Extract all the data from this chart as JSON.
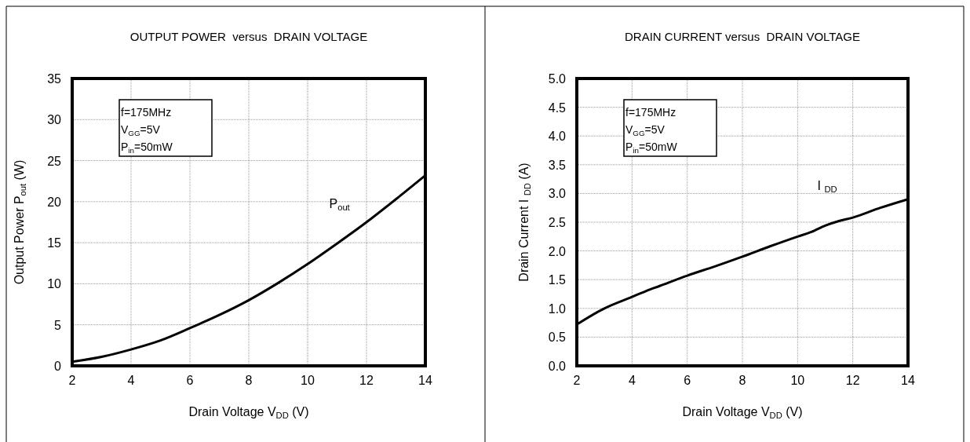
{
  "chart_data": [
    {
      "type": "line",
      "title": "OUTPUT POWER  versus  DRAIN VOLTAGE",
      "xlabel": "Drain Voltage V$_{DD}$ (V)",
      "ylabel": "Output Power P$_{out}$ (W)",
      "annotations": [
        "f=175MHz",
        "V$_{GG}$=5V",
        "P$_{in}$=50mW"
      ],
      "x": [
        2,
        3,
        4,
        5,
        6,
        7,
        8,
        9,
        10,
        11,
        12,
        13,
        14
      ],
      "series": [
        {
          "name": "P$_{out}$",
          "color": "#000000",
          "values": [
            0.5,
            1.1,
            2.0,
            3.1,
            4.6,
            6.2,
            8.0,
            10.1,
            12.4,
            14.9,
            17.5,
            20.3,
            23.2
          ]
        }
      ],
      "xlim": [
        2,
        14
      ],
      "xticks": [
        2,
        4,
        6,
        8,
        10,
        12,
        14
      ],
      "ylim": [
        0,
        35
      ],
      "yticks": [
        0,
        5,
        10,
        15,
        20,
        25,
        30,
        35
      ],
      "grid": true,
      "marker": "none",
      "line_style": "solid"
    },
    {
      "type": "line",
      "title": "DRAIN CURRENT versus  DRAIN VOLTAGE",
      "xlabel": "Drain Voltage V$_{DD}$ (V)",
      "ylabel": "Drain Current I $_{DD}$ (A)",
      "annotations": [
        "f=175MHz",
        "V$_{GG}$=5V",
        "P$_{in}$=50mW"
      ],
      "x": [
        2,
        3,
        4,
        4.5,
        5,
        6,
        7,
        8,
        9,
        10,
        10.5,
        11,
        11.5,
        12,
        13,
        14
      ],
      "series": [
        {
          "name": "I $_{DD}$",
          "color": "#000000",
          "values": [
            0.72,
            1.0,
            1.2,
            1.3,
            1.39,
            1.57,
            1.73,
            1.9,
            2.08,
            2.25,
            2.33,
            2.44,
            2.52,
            2.58,
            2.75,
            2.9
          ]
        }
      ],
      "xlim": [
        2,
        14
      ],
      "xticks": [
        2,
        4,
        6,
        8,
        10,
        12,
        14
      ],
      "ylim": [
        0,
        5
      ],
      "yticks": [
        {
          "value": 0,
          "label": "0.0"
        },
        {
          "value": 0.5,
          "label": "0.5"
        },
        {
          "value": 1,
          "label": "1.0"
        },
        {
          "value": 1.5,
          "label": "1.5"
        },
        {
          "value": 2,
          "label": "2.0"
        },
        {
          "value": 2.5,
          "label": "2.5"
        },
        {
          "value": 3,
          "label": "3.0"
        },
        {
          "value": 3.5,
          "label": "3.5"
        },
        {
          "value": 4,
          "label": "4.0"
        },
        {
          "value": 4.5,
          "label": "4.5"
        },
        {
          "value": 5,
          "label": "5.0"
        }
      ],
      "grid": true,
      "marker": "none",
      "line_style": "solid"
    }
  ]
}
